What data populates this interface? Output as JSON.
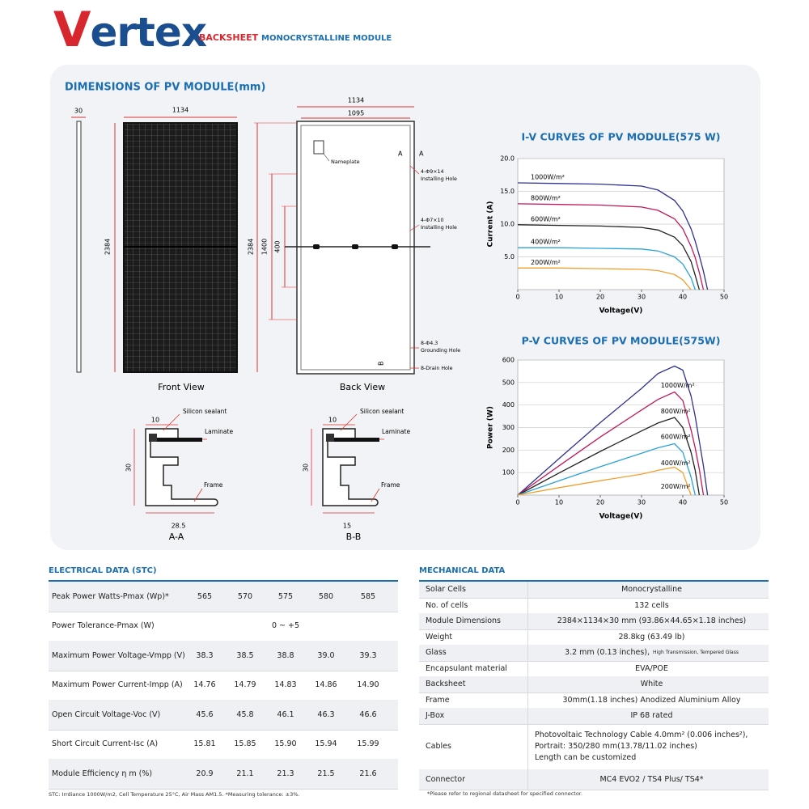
{
  "header": {
    "logo": "Vertex",
    "product": "BACKSHEET",
    "product_type": "MONOCRYSTALLINE MODULE"
  },
  "dimensions": {
    "title": "DIMENSIONS OF PV MODULE(mm)",
    "front": {
      "thickness": 30,
      "width": 1134,
      "height": 2384,
      "caption": "Front View"
    },
    "back": {
      "width": 1134,
      "inner_width": 1095,
      "height": 2384,
      "span": 1400,
      "span_small": 400,
      "nameplate": "Nameplate",
      "section_a": "A",
      "section_b": "B",
      "hole_1": {
        "size": "4-Φ9×14",
        "label": "Installing Hole"
      },
      "hole_2": {
        "size": "4-Φ7×10",
        "label": "Installing Hole"
      },
      "hole_3": {
        "size": "8-Φ4.3",
        "label": "Grounding Hole"
      },
      "drain": "8-Drain Hole",
      "caption": "Back View"
    },
    "sections": [
      {
        "caption": "A-A",
        "width": 10,
        "height": 30,
        "base": 28.5,
        "sealant": "Silicon sealant",
        "laminate": "Laminate",
        "frame": "Frame"
      },
      {
        "caption": "B-B",
        "width": 10,
        "height": 30,
        "base": 15,
        "sealant": "Silicon sealant",
        "laminate": "Laminate",
        "frame": "Frame"
      }
    ]
  },
  "chart_data": [
    {
      "type": "line",
      "title": "I-V CURVES OF PV MODULE(575 W)",
      "x_label": "Voltage(V)",
      "y_label": "Current (A)",
      "x": [
        0,
        10,
        20,
        30,
        34,
        38,
        40,
        42,
        43,
        44,
        45,
        46
      ],
      "xlim": [
        0,
        50
      ],
      "xticks": [
        0,
        10,
        20,
        30,
        40,
        50
      ],
      "ylim": [
        0,
        20
      ],
      "yticks": [
        {
          "value": 5,
          "label": "5.0"
        },
        {
          "value": 10,
          "label": "10.0"
        },
        {
          "value": 15,
          "label": "15.0"
        },
        {
          "value": 20,
          "label": "20.0"
        }
      ],
      "grid": true,
      "series": [
        {
          "name": "1000W/m²",
          "color": "#2e3192",
          "values": [
            16.3,
            16.2,
            16.1,
            15.8,
            15.2,
            13.6,
            12.0,
            9.3,
            7.4,
            5.2,
            2.8,
            0
          ]
        },
        {
          "name": "800W/m²",
          "color": "#c2185b",
          "values": [
            13.1,
            13.0,
            12.9,
            12.6,
            12.1,
            10.8,
            9.3,
            6.6,
            4.9,
            2.6,
            0,
            null
          ]
        },
        {
          "name": "600W/m²",
          "color": "#222222",
          "values": [
            9.9,
            9.8,
            9.7,
            9.5,
            9.1,
            8.0,
            6.7,
            4.3,
            2.2,
            0,
            null,
            null
          ]
        },
        {
          "name": "400W/m²",
          "color": "#29a3d6",
          "values": [
            6.4,
            6.4,
            6.3,
            6.2,
            5.9,
            5.0,
            3.9,
            1.8,
            0,
            null,
            null,
            null
          ]
        },
        {
          "name": "200W/m²",
          "color": "#f0a030",
          "values": [
            3.3,
            3.3,
            3.2,
            3.1,
            2.9,
            2.3,
            1.5,
            0,
            null,
            null,
            null,
            null
          ]
        }
      ]
    },
    {
      "type": "line",
      "title": "P-V CURVES OF PV MODULE(575W)",
      "x_label": "Voltage(V)",
      "y_label": "Power (W)",
      "x": [
        0,
        10,
        20,
        30,
        34,
        38,
        40,
        42,
        43,
        44,
        45,
        46
      ],
      "xlim": [
        0,
        50
      ],
      "xticks": [
        0,
        10,
        20,
        30,
        40,
        50
      ],
      "ylim": [
        0,
        600
      ],
      "yticks": [
        100,
        200,
        300,
        400,
        500,
        600
      ],
      "grid": true,
      "series": [
        {
          "name": "1000W/m²",
          "color": "#2e3192",
          "values": [
            0,
            162,
            322,
            474,
            540,
            573,
            555,
            440,
            350,
            240,
            130,
            0
          ]
        },
        {
          "name": "800W/m²",
          "color": "#c2185b",
          "values": [
            0,
            130,
            258,
            378,
            425,
            458,
            420,
            290,
            210,
            115,
            0,
            null
          ]
        },
        {
          "name": "600W/m²",
          "color": "#222222",
          "values": [
            0,
            98,
            194,
            285,
            320,
            345,
            300,
            190,
            110,
            0,
            null,
            null
          ]
        },
        {
          "name": "400W/m²",
          "color": "#29a3d6",
          "values": [
            0,
            64,
            126,
            186,
            210,
            228,
            190,
            80,
            0,
            null,
            null,
            null
          ]
        },
        {
          "name": "200W/m²",
          "color": "#f0a030",
          "values": [
            0,
            33,
            64,
            93,
            110,
            124,
            100,
            0,
            null,
            null,
            null,
            null
          ]
        }
      ]
    }
  ],
  "electrical": {
    "title": "ELECTRICAL DATA (STC)",
    "rows": [
      {
        "label": "Peak Power Watts-Pmax (Wp)*",
        "values": [
          "565",
          "570",
          "575",
          "580",
          "585"
        ]
      },
      {
        "label": "Power Tolerance-Pmax (W)",
        "value": "0 ~ +5"
      },
      {
        "label": "Maximum Power Voltage-Vmpp (V)",
        "values": [
          "38.3",
          "38.5",
          "38.8",
          "39.0",
          "39.3"
        ]
      },
      {
        "label": "Maximum Power Current-Impp (A)",
        "values": [
          "14.76",
          "14.79",
          "14.83",
          "14.86",
          "14.90"
        ]
      },
      {
        "label": "Open Circuit Voltage-Voc (V)",
        "values": [
          "45.6",
          "45.8",
          "46.1",
          "46.3",
          "46.6"
        ]
      },
      {
        "label": "Short Circuit Current-Isc (A)",
        "values": [
          "15.81",
          "15.85",
          "15.90",
          "15.94",
          "15.99"
        ]
      },
      {
        "label": "Module Efficiency η m (%)",
        "values": [
          "20.9",
          "21.1",
          "21.3",
          "21.5",
          "21.6"
        ]
      }
    ],
    "footnote": "STC: Irrdiance 1000W/m2, Cell Temperature 25°C, Air Mass AM1.5.   *Measuring tolerance: ±3%."
  },
  "mechanical": {
    "title": "MECHANICAL DATA",
    "rows": [
      {
        "label": "Solar Cells",
        "value": "Monocrystalline"
      },
      {
        "label": "No. of cells",
        "value": "132 cells"
      },
      {
        "label": "Module Dimensions",
        "value": "2384×1134×30 mm (93.86×44.65×1.18 inches)"
      },
      {
        "label": "Weight",
        "value": "28.8kg (63.49 lb)"
      },
      {
        "label": "Glass",
        "value": "3.2 mm (0.13 inches),",
        "note": "High Transmission,  Tempered Glass"
      },
      {
        "label": "Encapsulant material",
        "value": "EVA/POE"
      },
      {
        "label": "Backsheet",
        "value": "White"
      },
      {
        "label": "Frame",
        "value": "30mm(1.18 inches)  Anodized  Aluminium Alloy"
      },
      {
        "label": "J-Box",
        "value": "IP 68 rated"
      },
      {
        "label": "Cables",
        "lines": [
          "Photovoltaic Technology Cable 4.0mm² (0.006 inches²),",
          "Portrait: 350/280 mm(13.78/11.02 inches)",
          "Length can be customized"
        ]
      },
      {
        "label": "Connector",
        "value": "MC4 EVO2 / TS4 Plus/ TS4*"
      }
    ],
    "footnote": "*Please refer to regional datasheet for specified connector."
  }
}
